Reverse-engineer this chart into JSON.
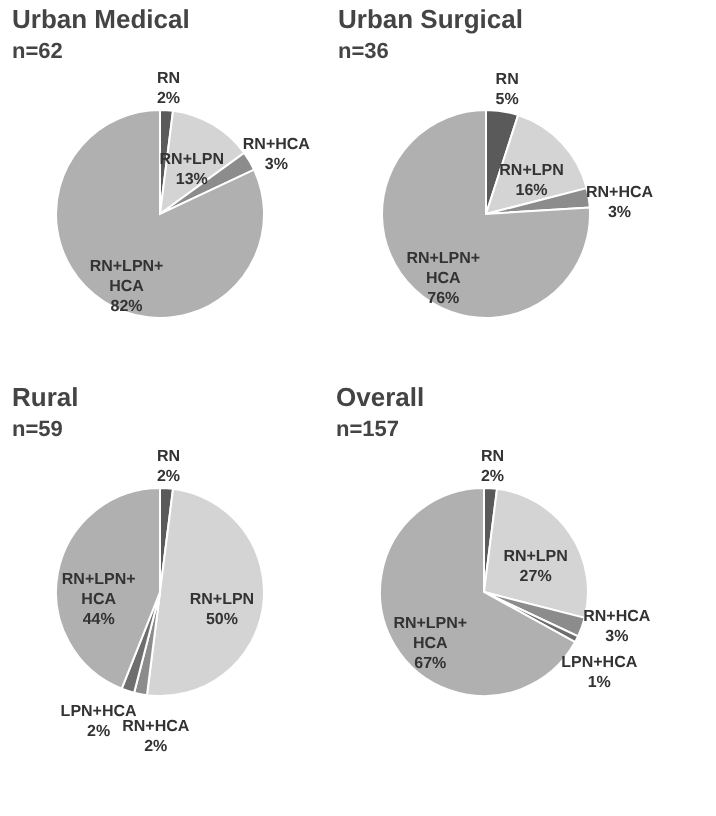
{
  "chart_data": [
    {
      "type": "pie",
      "title": "Urban Medical",
      "subtitle": "n=62",
      "categories": [
        "RN",
        "RN+LPN",
        "RN+HCA",
        "RN+LPN+HCA"
      ],
      "values": [
        2,
        13,
        3,
        82
      ],
      "value_labels": [
        "2%",
        "13%",
        "3%",
        "82%"
      ],
      "colors": [
        "#5a5a5a",
        "#d4d4d4",
        "#8c8c8c",
        "#b0b0b0"
      ]
    },
    {
      "type": "pie",
      "title": "Urban Surgical",
      "subtitle": "n=36",
      "categories": [
        "RN",
        "RN+LPN",
        "RN+HCA",
        "RN+LPN+HCA"
      ],
      "values": [
        5,
        16,
        3,
        76
      ],
      "value_labels": [
        "5%",
        "16%",
        "3%",
        "76%"
      ],
      "colors": [
        "#5a5a5a",
        "#d4d4d4",
        "#8c8c8c",
        "#b0b0b0"
      ]
    },
    {
      "type": "pie",
      "title": "Rural",
      "subtitle": "n=59",
      "categories": [
        "RN",
        "RN+LPN",
        "RN+HCA",
        "LPN+HCA",
        "RN+LPN+HCA"
      ],
      "values": [
        2,
        50,
        2,
        2,
        44
      ],
      "value_labels": [
        "2%",
        "50%",
        "2%",
        "2%",
        "44%"
      ],
      "colors": [
        "#5a5a5a",
        "#d4d4d4",
        "#8c8c8c",
        "#6e6e6e",
        "#b0b0b0"
      ]
    },
    {
      "type": "pie",
      "title": "Overall",
      "subtitle": "n=157",
      "categories": [
        "RN",
        "RN+LPN",
        "RN+HCA",
        "LPN+HCA",
        "RN+LPN+HCA"
      ],
      "values": [
        2,
        27,
        3,
        1,
        67
      ],
      "value_labels": [
        "2%",
        "27%",
        "3%",
        "1%",
        "67%"
      ],
      "colors": [
        "#5a5a5a",
        "#d4d4d4",
        "#8c8c8c",
        "#6e6e6e",
        "#b0b0b0"
      ]
    }
  ]
}
